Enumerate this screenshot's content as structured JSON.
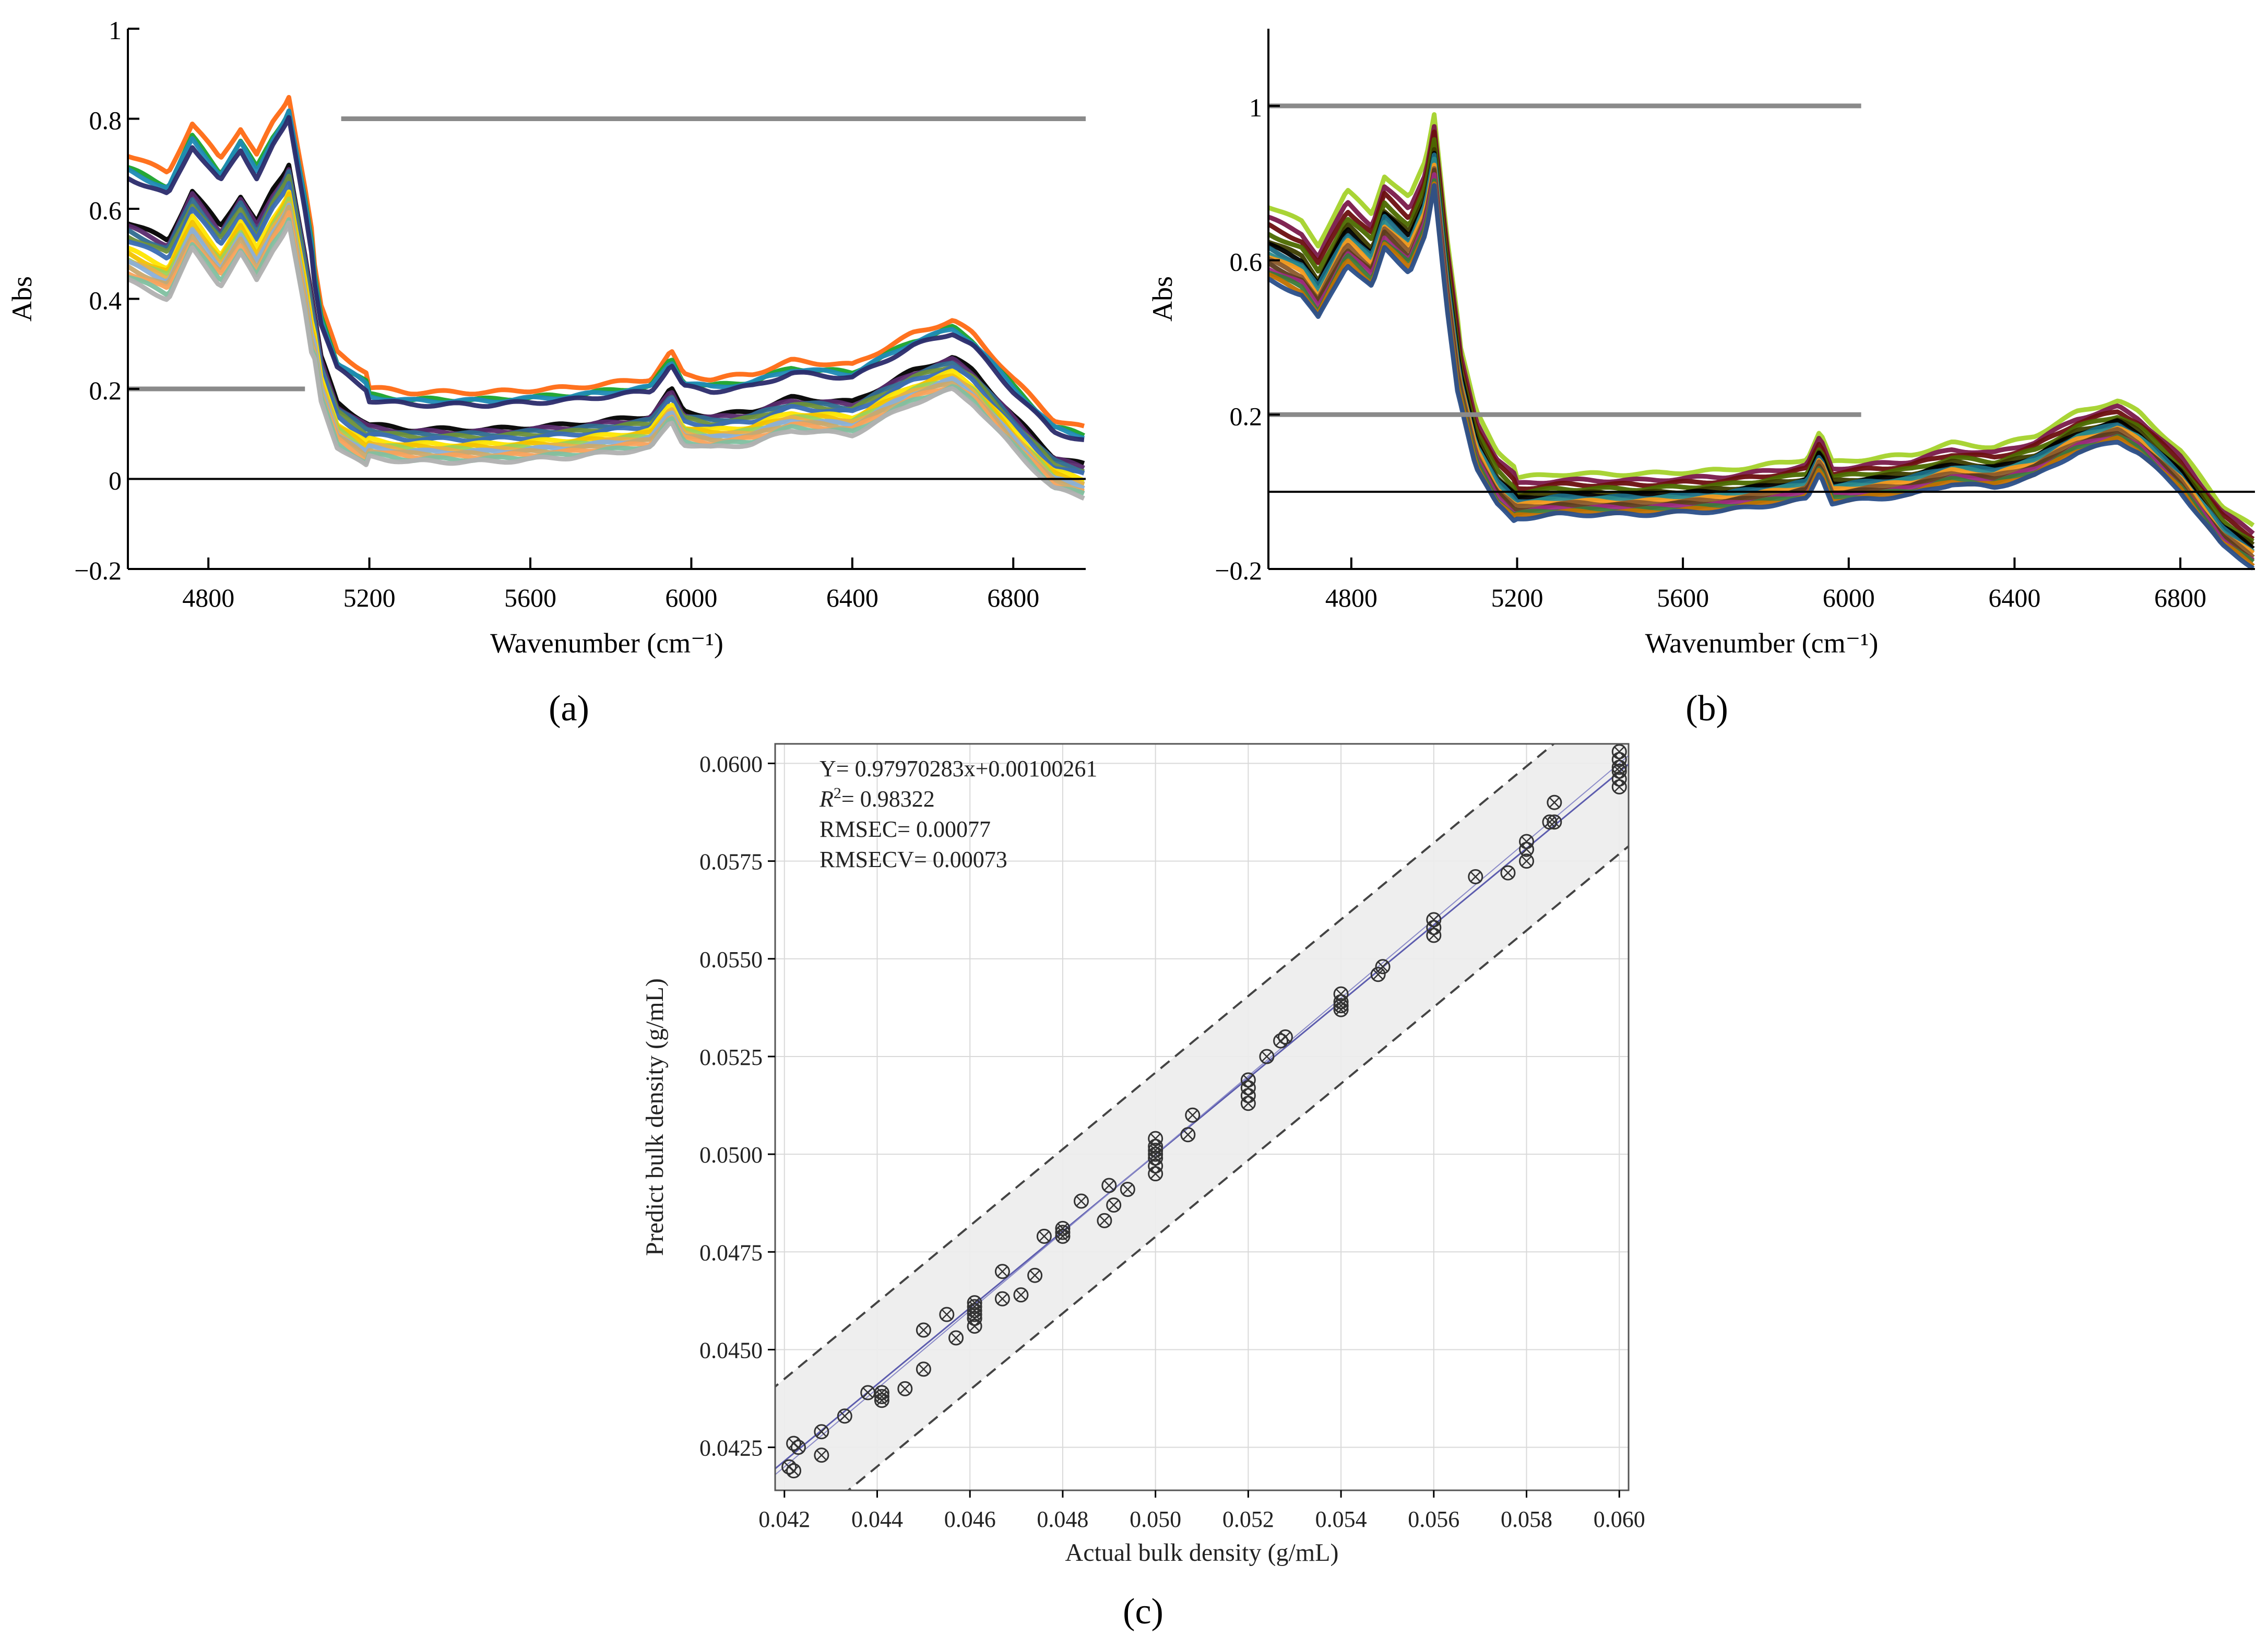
{
  "figure": {
    "colors": {
      "axis": "#000000",
      "refline": "#8a8a8a",
      "band_fill": "#ececec",
      "grid": "#d9d9d9",
      "fit_line": "#5c5cae",
      "marker": "#333333",
      "palette_a": [
        "#ff6a13",
        "#1aa32b",
        "#1f8ab6",
        "#2b2b6b",
        "#000000",
        "#5a2b6e",
        "#2f6b8f",
        "#6c8f3a",
        "#3a6db3",
        "#ffe600",
        "#f2c200",
        "#9bd35a",
        "#e8b04a",
        "#8ab0d8",
        "#c9a96e",
        "#f7a25c",
        "#7fc0a0",
        "#b0b0b0"
      ],
      "palette_b": [
        "#a4d22b",
        "#7a1a4a",
        "#6b0f0f",
        "#4c6a00",
        "#3d3d00",
        "#000000",
        "#1b6b85",
        "#2b8a8a",
        "#f59a1c",
        "#8b5a2b",
        "#5c3b1e",
        "#9c2a7f",
        "#3a7a3a",
        "#c07000",
        "#2a4f8a"
      ]
    },
    "panels": [
      {
        "id": "a",
        "caption": "(a)",
        "chart_data": {
          "type": "line",
          "title": "",
          "xlabel": "Wavenumber (cm⁻¹)",
          "ylabel": "Abs",
          "xlim": [
            4600,
            6980
          ],
          "ylim": [
            -0.2,
            1.0
          ],
          "x_ticks": [
            "4800",
            "5200",
            "5600",
            "6000",
            "6400",
            "6800"
          ],
          "y_ticks": [
            "−0.2",
            "0",
            "0.2",
            "0.4",
            "0.6",
            "0.8",
            "1"
          ],
          "x_tick_values": [
            4800,
            5200,
            5600,
            6000,
            6400,
            6800
          ],
          "y_tick_values": [
            -0.2,
            0,
            0.2,
            0.4,
            0.6,
            0.8,
            1.0
          ],
          "reference_lines": [
            {
              "y": 0.8,
              "x_from": 5130,
              "x_to": 6980,
              "style": "thick-gray"
            },
            {
              "y": 0.2,
              "x_from": 4600,
              "x_to": 5040,
              "style": "thick-gray"
            },
            {
              "y": 0.0,
              "x_from": 4600,
              "x_to": 6980,
              "style": "thin-black"
            }
          ],
          "series_note": "Multiple overlapping NIR spectra",
          "base_shape": {
            "x": [
              4600,
              4700,
              4760,
              4830,
              4880,
              4920,
              4960,
              4990,
              5000,
              5040,
              5080,
              5120,
              5200,
              5300,
              5500,
              5700,
              5800,
              5900,
              5950,
              5980,
              6050,
              6150,
              6250,
              6400,
              6550,
              6650,
              6700,
              6800,
              6900,
              6980
            ],
            "y": [
              0.57,
              0.53,
              0.64,
              0.56,
              0.63,
              0.57,
              0.64,
              0.68,
              0.7,
              0.5,
              0.27,
              0.17,
              0.12,
              0.11,
              0.11,
              0.12,
              0.13,
              0.14,
              0.2,
              0.15,
              0.14,
              0.15,
              0.18,
              0.17,
              0.24,
              0.27,
              0.24,
              0.14,
              0.05,
              0.03
            ]
          },
          "offsets": [
            0.15,
            0.12,
            0.115,
            0.1,
            0.0,
            -0.01,
            -0.02,
            -0.03,
            -0.04,
            -0.06,
            -0.07,
            -0.08,
            -0.085,
            -0.09,
            -0.1,
            -0.11,
            -0.12,
            -0.13
          ]
        }
      },
      {
        "id": "b",
        "caption": "(b)",
        "chart_data": {
          "type": "line",
          "title": "",
          "xlabel": "Wavenumber (cm⁻¹)",
          "ylabel": "Abs",
          "xlim": [
            4600,
            6980
          ],
          "ylim": [
            -0.2,
            1.2
          ],
          "x_ticks": [
            "4800",
            "5200",
            "5600",
            "6000",
            "6400",
            "6800"
          ],
          "y_ticks": [
            "−0.2",
            "0.2",
            "0.6",
            "1"
          ],
          "x_tick_values": [
            4800,
            5200,
            5600,
            6000,
            6400,
            6800
          ],
          "y_tick_values": [
            -0.2,
            0.2,
            0.6,
            1.0
          ],
          "reference_lines": [
            {
              "y": 1.0,
              "x_from": 4600,
              "x_to": 6030,
              "style": "thick-gray"
            },
            {
              "y": 0.2,
              "x_from": 4600,
              "x_to": 6030,
              "style": "thick-gray"
            },
            {
              "y": 0.0,
              "x_from": 4600,
              "x_to": 6980,
              "style": "thin-black"
            }
          ],
          "series_note": "Multiple overlapping preprocessed NIR spectra",
          "base_shape": {
            "x": [
              4600,
              4680,
              4720,
              4790,
              4850,
              4880,
              4940,
              4980,
              5000,
              5030,
              5060,
              5100,
              5150,
              5200,
              5300,
              5500,
              5700,
              5850,
              5900,
              5930,
              5960,
              6050,
              6150,
              6250,
              6350,
              6450,
              6550,
              6650,
              6700,
              6800,
              6900,
              6980
            ],
            "y": [
              0.62,
              0.58,
              0.52,
              0.66,
              0.6,
              0.7,
              0.64,
              0.74,
              0.86,
              0.55,
              0.3,
              0.12,
              0.02,
              -0.03,
              -0.02,
              -0.02,
              -0.01,
              0.01,
              0.02,
              0.09,
              0.01,
              0.02,
              0.03,
              0.06,
              0.05,
              0.08,
              0.14,
              0.17,
              0.14,
              0.04,
              -0.1,
              -0.16
            ]
          },
          "offsets": [
            0.12,
            0.09,
            0.07,
            0.05,
            0.03,
            0.02,
            0.01,
            0.0,
            -0.01,
            -0.02,
            -0.03,
            -0.04,
            -0.05,
            -0.06,
            -0.07
          ]
        }
      },
      {
        "id": "c",
        "caption": "(c)",
        "chart_data": {
          "type": "scatter",
          "title": "",
          "xlabel": "Actual bulk density (g/mL)",
          "ylabel": "Predict bulk density (g/mL)",
          "xlim": [
            0.0418,
            0.0602
          ],
          "ylim": [
            0.0414,
            0.0605
          ],
          "x_ticks": [
            "0.042",
            "0.044",
            "0.046",
            "0.048",
            "0.050",
            "0.052",
            "0.054",
            "0.056",
            "0.058",
            "0.060"
          ],
          "y_ticks": [
            "0.0425",
            "0.0450",
            "0.0475",
            "0.0500",
            "0.0525",
            "0.0550",
            "0.0575",
            "0.0600"
          ],
          "x_tick_values": [
            0.042,
            0.044,
            0.046,
            0.048,
            0.05,
            0.052,
            0.054,
            0.056,
            0.058,
            0.06
          ],
          "y_tick_values": [
            0.0425,
            0.045,
            0.0475,
            0.05,
            0.0525,
            0.055,
            0.0575,
            0.06
          ],
          "grid": true,
          "annotations": [
            "Y= 0.97970283x+0.00100261",
            "= 0.98322",
            "RMSEC= 0.00077",
            "RMSECV= 0.00073"
          ],
          "r2_label_base": "R",
          "r2_label_sup": "2",
          "fit": {
            "slope": 0.97970283,
            "intercept": 0.00100261
          },
          "band_offset": 0.0021,
          "points": {
            "x": [
              0.0421,
              0.0422,
              0.0423,
              0.0422,
              0.0428,
              0.0428,
              0.0433,
              0.0438,
              0.0441,
              0.0441,
              0.0441,
              0.0446,
              0.045,
              0.045,
              0.0455,
              0.0457,
              0.0461,
              0.0461,
              0.0461,
              0.0461,
              0.0461,
              0.0461,
              0.0461,
              0.0467,
              0.0467,
              0.0471,
              0.0474,
              0.0476,
              0.048,
              0.048,
              0.048,
              0.0484,
              0.0489,
              0.049,
              0.0491,
              0.0494,
              0.05,
              0.05,
              0.05,
              0.05,
              0.05,
              0.05,
              0.05,
              0.0507,
              0.0508,
              0.052,
              0.052,
              0.052,
              0.052,
              0.0524,
              0.0527,
              0.0528,
              0.054,
              0.054,
              0.054,
              0.054,
              0.054,
              0.0548,
              0.0549,
              0.056,
              0.056,
              0.056,
              0.0569,
              0.0576,
              0.058,
              0.058,
              0.058,
              0.0585,
              0.0586,
              0.0586,
              0.06,
              0.06,
              0.06,
              0.06,
              0.06,
              0.06
            ],
            "y": [
              0.042,
              0.0419,
              0.0425,
              0.0426,
              0.0423,
              0.0429,
              0.0433,
              0.0439,
              0.0437,
              0.0439,
              0.0438,
              0.044,
              0.0445,
              0.0455,
              0.0459,
              0.0453,
              0.0456,
              0.0458,
              0.0459,
              0.046,
              0.0461,
              0.0462,
              0.0458,
              0.0463,
              0.047,
              0.0464,
              0.0469,
              0.0479,
              0.048,
              0.0479,
              0.0481,
              0.0488,
              0.0483,
              0.0492,
              0.0487,
              0.0491,
              0.0495,
              0.0497,
              0.0499,
              0.0501,
              0.0502,
              0.0504,
              0.05,
              0.0505,
              0.051,
              0.0513,
              0.0515,
              0.0517,
              0.0519,
              0.0525,
              0.0529,
              0.053,
              0.0537,
              0.0538,
              0.0539,
              0.0541,
              0.0538,
              0.0546,
              0.0548,
              0.0556,
              0.0558,
              0.056,
              0.0571,
              0.0572,
              0.0575,
              0.0578,
              0.058,
              0.0585,
              0.0585,
              0.059,
              0.0594,
              0.0596,
              0.0599,
              0.0601,
              0.0603,
              0.0598
            ]
          }
        }
      }
    ]
  }
}
